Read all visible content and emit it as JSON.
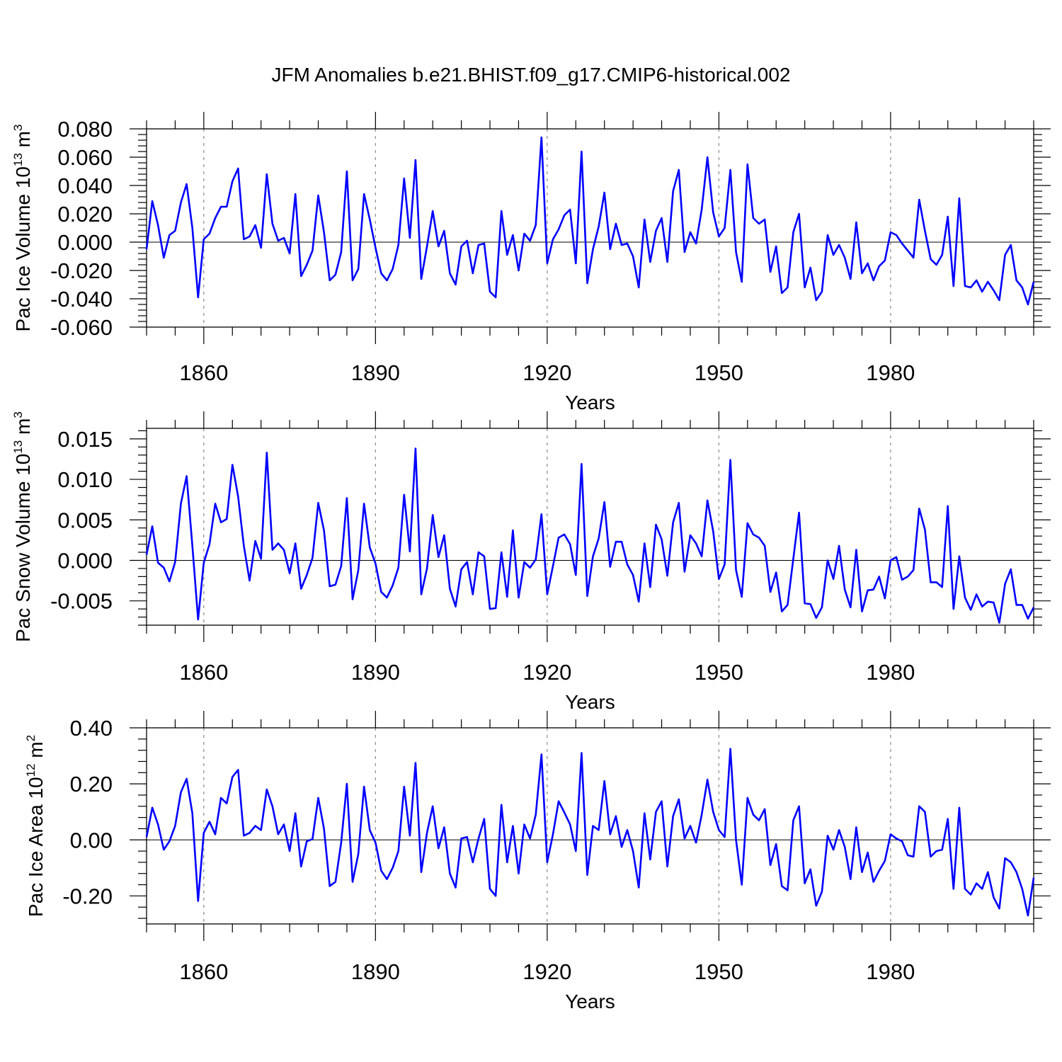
{
  "title": "JFM Anomalies b.e21.BHIST.f09_g17.CMIP6-historical.002",
  "colors": {
    "line": "#0000ff",
    "axis": "#000000",
    "grid": "#888888"
  },
  "chart_data": [
    {
      "type": "line",
      "name": "ice-volume",
      "ylabel_text": "Pac Ice Volume 10",
      "ylabel_exp": "13",
      "ylabel_unit": " m",
      "ylabel_unit_exp": "3",
      "xlabel": "Years",
      "xlim": [
        1850,
        2005
      ],
      "ylim": [
        -0.06,
        0.08
      ],
      "yticks": [
        -0.06,
        -0.04,
        -0.02,
        0.0,
        0.02,
        0.04,
        0.06,
        0.08
      ],
      "ytick_labels": [
        "-0.060",
        "-0.040",
        "-0.020",
        "0.000",
        "0.020",
        "0.040",
        "0.060",
        "0.080"
      ],
      "xticks": [
        1860,
        1890,
        1920,
        1950,
        1980
      ],
      "xtick_labels": [
        "1860",
        "1890",
        "1920",
        "1950",
        "1980"
      ],
      "x_start": 1850,
      "values": [
        -0.005,
        0.029,
        0.012,
        -0.011,
        0.005,
        0.008,
        0.028,
        0.041,
        0.01,
        -0.039,
        0.002,
        0.006,
        0.017,
        0.025,
        0.025,
        0.043,
        0.052,
        0.002,
        0.004,
        0.012,
        -0.004,
        0.048,
        0.013,
        0.001,
        0.003,
        -0.008,
        0.034,
        -0.024,
        -0.016,
        -0.006,
        0.033,
        0.007,
        -0.027,
        -0.023,
        -0.007,
        0.05,
        -0.027,
        -0.019,
        0.034,
        0.016,
        -0.004,
        -0.022,
        -0.027,
        -0.019,
        -0.002,
        0.045,
        0.003,
        0.058,
        -0.026,
        -0.003,
        0.022,
        -0.003,
        0.008,
        -0.022,
        -0.03,
        -0.003,
        0.001,
        -0.022,
        -0.002,
        -0.001,
        -0.035,
        -0.039,
        0.022,
        -0.009,
        0.005,
        -0.02,
        0.006,
        0.001,
        0.012,
        0.074,
        -0.015,
        0.002,
        0.009,
        0.019,
        0.023,
        -0.015,
        0.064,
        -0.029,
        -0.005,
        0.011,
        0.035,
        -0.005,
        0.013,
        -0.002,
        -0.001,
        -0.01,
        -0.032,
        0.016,
        -0.014,
        0.008,
        0.017,
        -0.014,
        0.036,
        0.051,
        -0.007,
        0.007,
        -0.001,
        0.023,
        0.06,
        0.021,
        0.004,
        0.01,
        0.051,
        -0.007,
        -0.028,
        0.055,
        0.017,
        0.013,
        0.016,
        -0.021,
        -0.003,
        -0.036,
        -0.032,
        0.007,
        0.02,
        -0.032,
        -0.018,
        -0.041,
        -0.035,
        0.005,
        -0.009,
        -0.002,
        -0.011,
        -0.026,
        0.014,
        -0.022,
        -0.015,
        -0.027,
        -0.017,
        -0.013,
        0.007,
        0.005,
        -0.001,
        -0.006,
        -0.011,
        0.03,
        0.008,
        -0.012,
        -0.016,
        -0.009,
        0.018,
        -0.031,
        0.031,
        -0.031,
        -0.032,
        -0.027,
        -0.035,
        -0.028,
        -0.034,
        -0.041,
        -0.009,
        -0.002,
        -0.027,
        -0.032,
        -0.044,
        -0.028
      ]
    },
    {
      "type": "line",
      "name": "snow-volume",
      "ylabel_text": "Pac Snow Volume 10",
      "ylabel_exp": "13",
      "ylabel_unit": " m",
      "ylabel_unit_exp": "3",
      "xlabel": "Years",
      "xlim": [
        1850,
        2005
      ],
      "ylim": [
        -0.008,
        0.0163
      ],
      "yticks": [
        -0.005,
        0.0,
        0.005,
        0.01,
        0.015
      ],
      "ytick_labels": [
        "-0.005",
        "0.000",
        "0.005",
        "0.010",
        "0.015"
      ],
      "xticks": [
        1860,
        1890,
        1920,
        1950,
        1980
      ],
      "xtick_labels": [
        "1860",
        "1890",
        "1920",
        "1950",
        "1980"
      ],
      "x_start": 1850,
      "values": [
        0.0007,
        0.0042,
        -0.0003,
        -0.0009,
        -0.0026,
        -0.0002,
        0.007,
        0.0104,
        0.0018,
        -0.0073,
        -0.0003,
        0.002,
        0.007,
        0.0047,
        0.0051,
        0.0118,
        0.0079,
        0.0018,
        -0.0025,
        0.0024,
        0.0002,
        0.0133,
        0.0013,
        0.0021,
        0.0013,
        -0.0016,
        0.0021,
        -0.0035,
        -0.0018,
        0.0003,
        0.0071,
        0.0037,
        -0.0032,
        -0.003,
        -0.0007,
        0.0077,
        -0.0048,
        -0.0012,
        0.007,
        0.0016,
        -0.0004,
        -0.0039,
        -0.0046,
        -0.0031,
        -0.0009,
        0.0081,
        0.0011,
        0.0138,
        -0.0042,
        -0.001,
        0.0056,
        0.0004,
        0.0031,
        -0.0035,
        -0.0057,
        -0.0011,
        -0.0002,
        -0.0042,
        0.001,
        0.0005,
        -0.006,
        -0.0059,
        0.001,
        -0.0045,
        0.0037,
        -0.0046,
        -0.0002,
        -0.0009,
        0.0001,
        0.0057,
        -0.0042,
        -0.0007,
        0.0028,
        0.0032,
        0.002,
        -0.0018,
        0.0119,
        -0.0044,
        0.0005,
        0.0027,
        0.0072,
        -0.0008,
        0.0023,
        0.0023,
        -0.0005,
        -0.0018,
        -0.0051,
        0.0021,
        -0.0033,
        0.0044,
        0.0026,
        -0.0019,
        0.0047,
        0.0071,
        -0.0014,
        0.0031,
        0.0021,
        0.0005,
        0.0074,
        0.0036,
        -0.0023,
        -0.0005,
        0.0124,
        -0.0012,
        -0.0045,
        0.0046,
        0.0032,
        0.0028,
        0.0018,
        -0.0039,
        -0.0015,
        -0.0063,
        -0.0055,
        0.0002,
        0.0059,
        -0.0053,
        -0.0054,
        -0.0071,
        -0.0058,
        0.0,
        -0.0023,
        0.0018,
        -0.0036,
        -0.0058,
        0.0013,
        -0.0063,
        -0.0037,
        -0.0036,
        -0.002,
        -0.0047,
        0.0,
        0.0004,
        -0.0024,
        -0.002,
        -0.0012,
        0.0064,
        0.0038,
        -0.0027,
        -0.0027,
        -0.0033,
        0.0067,
        -0.006,
        0.0005,
        -0.0046,
        -0.0061,
        -0.0042,
        -0.0057,
        -0.0051,
        -0.0052,
        -0.0077,
        -0.0029,
        -0.0011,
        -0.0055,
        -0.0055,
        -0.0072,
        -0.0058
      ]
    },
    {
      "type": "line",
      "name": "ice-area",
      "ylabel_text": "Pac Ice Area 10",
      "ylabel_exp": "12",
      "ylabel_unit": " m",
      "ylabel_unit_exp": "2",
      "xlabel": "Years",
      "xlim": [
        1850,
        2005
      ],
      "ylim": [
        -0.3,
        0.4
      ],
      "yticks": [
        -0.2,
        0.0,
        0.2,
        0.4
      ],
      "ytick_labels": [
        "-0.20",
        "0.00",
        "0.20",
        "0.40"
      ],
      "xticks": [
        1860,
        1890,
        1920,
        1950,
        1980
      ],
      "xtick_labels": [
        "1860",
        "1890",
        "1920",
        "1950",
        "1980"
      ],
      "x_start": 1850,
      "values": [
        0.01,
        0.115,
        0.055,
        -0.035,
        -0.005,
        0.05,
        0.17,
        0.218,
        0.095,
        -0.218,
        0.025,
        0.065,
        0.02,
        0.15,
        0.13,
        0.225,
        0.25,
        0.015,
        0.025,
        0.05,
        0.035,
        0.18,
        0.12,
        0.02,
        0.055,
        -0.04,
        0.095,
        -0.095,
        -0.005,
        0.003,
        0.15,
        0.04,
        -0.165,
        -0.15,
        -0.01,
        0.2,
        -0.15,
        -0.05,
        0.19,
        0.035,
        -0.01,
        -0.11,
        -0.14,
        -0.1,
        -0.04,
        0.19,
        0.015,
        0.275,
        -0.115,
        0.025,
        0.12,
        -0.03,
        0.045,
        -0.12,
        -0.17,
        0.005,
        0.01,
        -0.08,
        0.005,
        0.075,
        -0.175,
        -0.2,
        0.125,
        -0.08,
        0.05,
        -0.12,
        0.055,
        0.005,
        0.09,
        0.305,
        -0.08,
        0.02,
        0.138,
        0.098,
        0.055,
        -0.04,
        0.31,
        -0.125,
        0.05,
        0.035,
        0.21,
        0.02,
        0.085,
        -0.025,
        0.035,
        -0.04,
        -0.17,
        0.095,
        -0.07,
        0.1,
        0.138,
        -0.095,
        0.085,
        0.145,
        0.005,
        0.05,
        -0.01,
        0.09,
        0.215,
        0.1,
        0.035,
        0.01,
        0.325,
        0.0,
        -0.16,
        0.15,
        0.09,
        0.07,
        0.11,
        -0.09,
        -0.015,
        -0.165,
        -0.18,
        0.07,
        0.12,
        -0.155,
        -0.105,
        -0.235,
        -0.185,
        0.015,
        -0.035,
        0.035,
        -0.025,
        -0.14,
        0.045,
        -0.115,
        -0.045,
        -0.15,
        -0.11,
        -0.075,
        0.02,
        0.005,
        -0.005,
        -0.055,
        -0.06,
        0.12,
        0.1,
        -0.06,
        -0.04,
        -0.035,
        0.075,
        -0.175,
        0.115,
        -0.175,
        -0.195,
        -0.155,
        -0.175,
        -0.115,
        -0.205,
        -0.245,
        -0.065,
        -0.08,
        -0.115,
        -0.175,
        -0.27,
        -0.135
      ]
    }
  ]
}
